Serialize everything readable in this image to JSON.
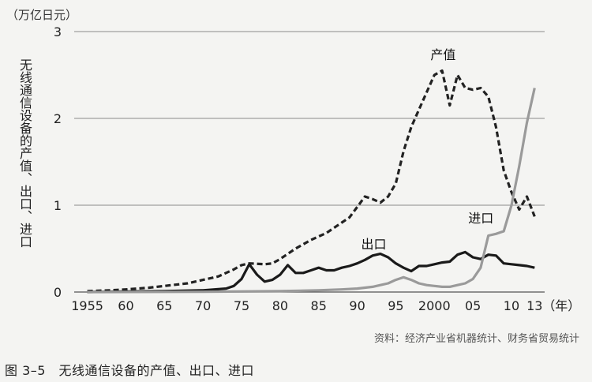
{
  "unit_label": "（万亿日元）",
  "ylabel": "无线通信设备的产值、出口、进口",
  "source": "资料：经济产业省机器统计、财务省贸易统计",
  "caption": "图 3–5　无线通信设备的产值、出口、进口",
  "colors": {
    "background": "#f4f4f2",
    "production": "#222222",
    "export": "#1a1a1a",
    "import": "#9a9a9a",
    "grid": "#8a8a8a"
  },
  "chart_data": {
    "type": "line",
    "title": "",
    "ylabel": "无线通信设备的产值、出口、进口",
    "ylabel_unit": "（万亿日元）",
    "xlabel_unit": "（年）",
    "xlim": [
      1955,
      2013
    ],
    "ylim": [
      0,
      3
    ],
    "yticks": [
      0,
      1,
      2,
      3
    ],
    "ytick_labels": [
      "0",
      "1",
      "2",
      "3"
    ],
    "xticks": [
      1955,
      1960,
      1965,
      1970,
      1975,
      1980,
      1985,
      1990,
      1995,
      2000,
      2005,
      2010,
      2013
    ],
    "xtick_labels": [
      "1955",
      "60",
      "65",
      "70",
      "75",
      "80",
      "85",
      "90",
      "95",
      "2000",
      "05",
      "10",
      "13"
    ],
    "grid": "horizontal",
    "series": [
      {
        "name": "产值",
        "style": "dashed",
        "x": [
          1955,
          1958,
          1960,
          1963,
          1965,
          1968,
          1970,
          1972,
          1974,
          1975,
          1976,
          1978,
          1979,
          1980,
          1981,
          1982,
          1983,
          1984,
          1985,
          1986,
          1987,
          1988,
          1989,
          1990,
          1991,
          1992,
          1993,
          1994,
          1995,
          1996,
          1997,
          1998,
          1999,
          2000,
          2001,
          2002,
          2003,
          2004,
          2005,
          2006,
          2007,
          2008,
          2009,
          2010,
          2011,
          2012,
          2013
        ],
        "values": [
          0.01,
          0.02,
          0.03,
          0.05,
          0.07,
          0.1,
          0.14,
          0.18,
          0.26,
          0.31,
          0.33,
          0.32,
          0.33,
          0.38,
          0.44,
          0.5,
          0.55,
          0.6,
          0.64,
          0.68,
          0.74,
          0.8,
          0.86,
          0.98,
          1.1,
          1.07,
          1.03,
          1.1,
          1.25,
          1.62,
          1.9,
          2.1,
          2.3,
          2.5,
          2.55,
          2.15,
          2.5,
          2.35,
          2.33,
          2.35,
          2.25,
          1.9,
          1.4,
          1.15,
          0.95,
          1.1,
          0.87
        ]
      },
      {
        "name": "出口",
        "style": "solid",
        "x": [
          1955,
          1960,
          1965,
          1970,
          1973,
          1974,
          1975,
          1976,
          1977,
          1978,
          1979,
          1980,
          1981,
          1982,
          1983,
          1984,
          1985,
          1986,
          1987,
          1988,
          1989,
          1990,
          1991,
          1992,
          1993,
          1994,
          1995,
          1996,
          1997,
          1998,
          1999,
          2000,
          2001,
          2002,
          2003,
          2004,
          2005,
          2006,
          2007,
          2008,
          2009,
          2010,
          2011,
          2012,
          2013
        ],
        "values": [
          0,
          0.005,
          0.01,
          0.02,
          0.04,
          0.07,
          0.15,
          0.32,
          0.2,
          0.12,
          0.14,
          0.2,
          0.31,
          0.22,
          0.22,
          0.25,
          0.28,
          0.25,
          0.25,
          0.28,
          0.3,
          0.33,
          0.37,
          0.42,
          0.44,
          0.4,
          0.33,
          0.28,
          0.24,
          0.3,
          0.3,
          0.32,
          0.34,
          0.35,
          0.43,
          0.46,
          0.4,
          0.38,
          0.43,
          0.42,
          0.33,
          0.32,
          0.31,
          0.3,
          0.28
        ]
      },
      {
        "name": "进口",
        "style": "solid",
        "x": [
          1955,
          1970,
          1980,
          1985,
          1988,
          1990,
          1992,
          1993,
          1994,
          1995,
          1996,
          1997,
          1998,
          1999,
          2000,
          2001,
          2002,
          2003,
          2004,
          2005,
          2006,
          2007,
          2008,
          2009,
          2010,
          2011,
          2012,
          2013
        ],
        "values": [
          0,
          0.003,
          0.01,
          0.02,
          0.03,
          0.04,
          0.06,
          0.08,
          0.1,
          0.14,
          0.17,
          0.14,
          0.1,
          0.08,
          0.07,
          0.06,
          0.06,
          0.08,
          0.1,
          0.15,
          0.28,
          0.65,
          0.67,
          0.7,
          1.0,
          1.45,
          1.95,
          2.35
        ]
      }
    ],
    "annotations": [
      {
        "text": "产值",
        "series": "产值"
      },
      {
        "text": "出口",
        "series": "出口"
      },
      {
        "text": "进口",
        "series": "进口"
      }
    ]
  }
}
